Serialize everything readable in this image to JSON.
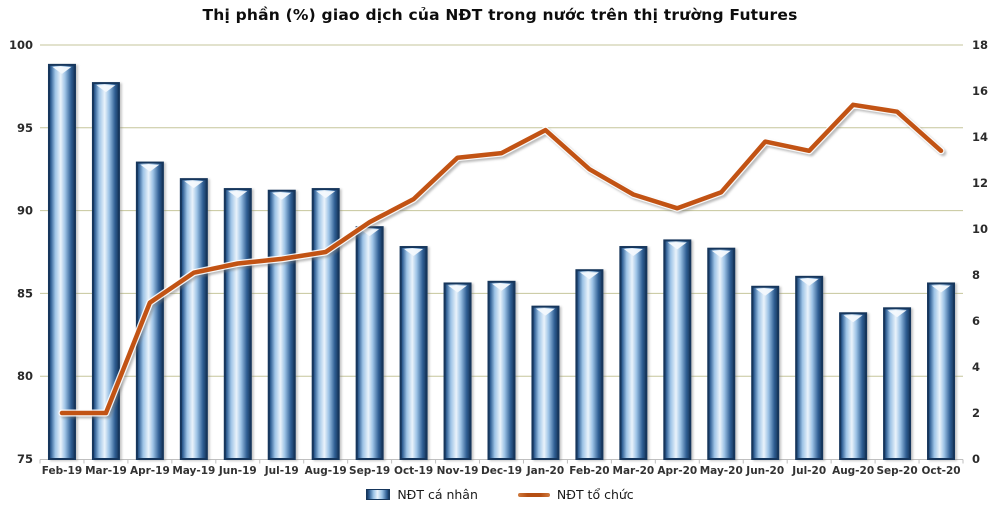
{
  "title": "Thị phần (%) giao dịch của NĐT trong nước trên thị trường Futures",
  "chart_data": {
    "type": "bar",
    "subtype": "bar+line combo, dual axis",
    "title": "Thị phần (%) giao dịch của NĐT trong nước trên thị trường Futures",
    "categories": [
      "Feb-19",
      "Mar-19",
      "Apr-19",
      "May-19",
      "Jun-19",
      "Jul-19",
      "Aug-19",
      "Sep-19",
      "Oct-19",
      "Nov-19",
      "Dec-19",
      "Jan-20",
      "Feb-20",
      "Mar-20",
      "Apr-20",
      "May-20",
      "Jun-20",
      "Jul-20",
      "Aug-20",
      "Sep-20",
      "Oct-20"
    ],
    "series": [
      {
        "name": "NĐT cá nhân",
        "type": "bar",
        "axis": "left",
        "values": [
          98.8,
          97.7,
          92.9,
          91.9,
          91.3,
          91.2,
          91.3,
          89.0,
          87.8,
          85.6,
          85.7,
          84.2,
          86.4,
          87.8,
          88.2,
          87.7,
          85.4,
          86.0,
          83.8,
          84.1,
          85.6
        ]
      },
      {
        "name": "NĐT tổ chức",
        "type": "line",
        "axis": "right",
        "values": [
          2.0,
          2.0,
          6.8,
          8.1,
          8.5,
          8.7,
          9.0,
          10.3,
          11.3,
          13.1,
          13.3,
          14.3,
          12.6,
          11.5,
          10.9,
          11.6,
          13.8,
          13.4,
          15.4,
          15.1,
          13.4
        ]
      }
    ],
    "left_axis": {
      "min": 75,
      "max": 100,
      "ticks": [
        75,
        80,
        85,
        90,
        95,
        100
      ]
    },
    "right_axis": {
      "min": 0,
      "max": 18,
      "ticks": [
        0,
        2,
        4,
        6,
        8,
        10,
        12,
        14,
        16,
        18
      ]
    },
    "grid": true,
    "legend_position": "bottom"
  },
  "colors": {
    "bar_border": "#16365C",
    "bar_dark": "#2F5E93",
    "bar_mid": "#9DC3E6",
    "bar_light": "#EAF3FB",
    "line": "#C25314",
    "line_halo": "#FFFFFF",
    "grid": "#C6C69B",
    "axis_line": "#BFBFBF",
    "text": "#2b2b2b"
  }
}
